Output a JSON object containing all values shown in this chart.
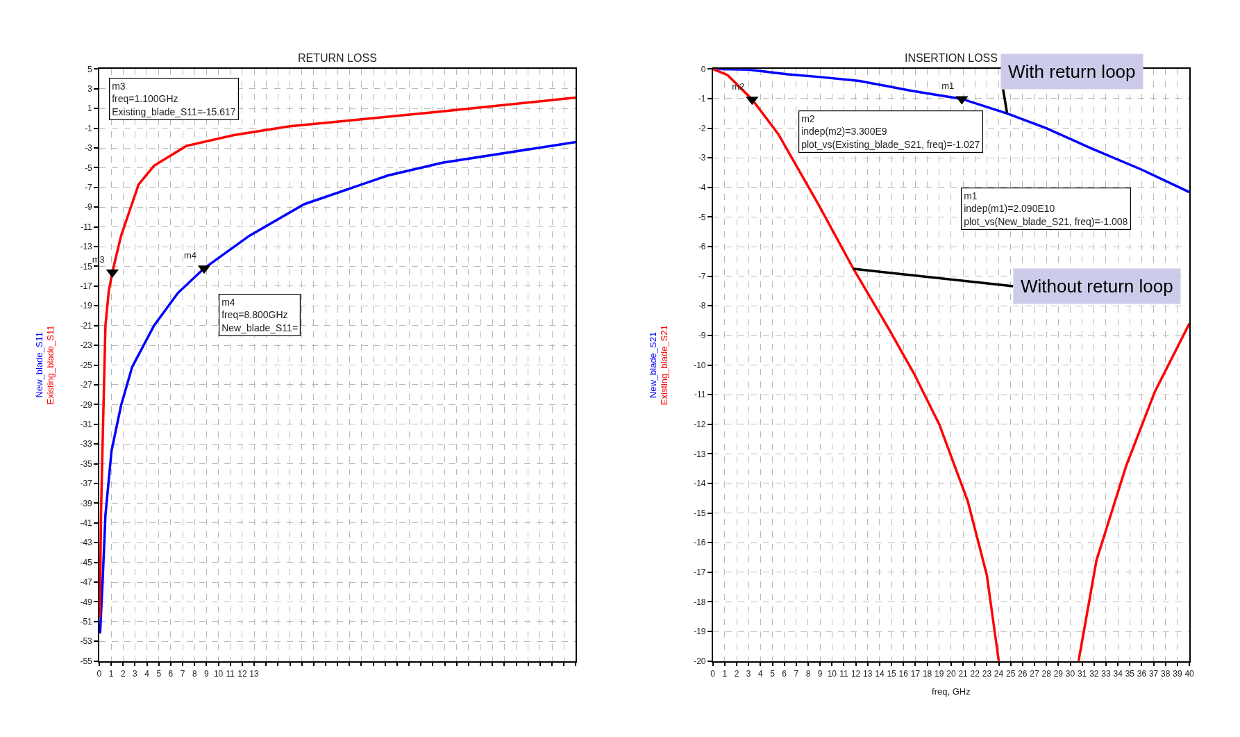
{
  "chart_data": [
    {
      "type": "line",
      "title": "RETURN LOSS",
      "grid": true,
      "xlim": [
        0,
        40
      ],
      "xticks": [
        0,
        1,
        2,
        3,
        4,
        5,
        6,
        7,
        8,
        9,
        10,
        11,
        12,
        13,
        {
          "value": 14,
          "label": null
        },
        {
          "value": 15,
          "label": null
        },
        {
          "value": 16,
          "label": null
        },
        {
          "value": 17,
          "label": null
        },
        {
          "value": 18,
          "label": null
        },
        {
          "value": 19,
          "label": null
        },
        {
          "value": 20,
          "label": null
        },
        {
          "value": 21,
          "label": null
        },
        {
          "value": 22,
          "label": null
        },
        {
          "value": 23,
          "label": null
        },
        {
          "value": 24,
          "label": null
        },
        {
          "value": 25,
          "label": null
        },
        {
          "value": 26,
          "label": null
        },
        {
          "value": 27,
          "label": null
        },
        {
          "value": 28,
          "label": null
        },
        {
          "value": 29,
          "label": null
        },
        {
          "value": 30,
          "label": null
        },
        {
          "value": 31,
          "label": null
        },
        {
          "value": 32,
          "label": null
        },
        {
          "value": 33,
          "label": null
        },
        {
          "value": 34,
          "label": null
        },
        {
          "value": 35,
          "label": null
        },
        {
          "value": 36,
          "label": null
        },
        {
          "value": 37,
          "label": null
        },
        {
          "value": 38,
          "label": null
        },
        {
          "value": 39,
          "label": null
        },
        {
          "value": 40,
          "label": null
        }
      ],
      "ylim": [
        -55,
        5
      ],
      "yticks": [
        5,
        3,
        1,
        -1,
        -3,
        -5,
        -7,
        -9,
        -11,
        -13,
        -15,
        -17,
        -19,
        -21,
        -23,
        -25,
        -27,
        -29,
        -31,
        -33,
        -35,
        -37,
        -39,
        -41,
        -43,
        -45,
        -47,
        -49,
        -51,
        -53,
        -55
      ],
      "series": [
        {
          "name": "New_blade_S11",
          "color": "#0000ff",
          "x": [
            0.07,
            0.28,
            0.52,
            1.03,
            1.83,
            2.76,
            4.6,
            6.6,
            8.8,
            12.6,
            17.2,
            24.2,
            28.8,
            40
          ],
          "values": [
            -52.2,
            -47,
            -40.2,
            -33.7,
            -29.1,
            -25.2,
            -21,
            -17.7,
            -15.2,
            -11.9,
            -8.7,
            -5.8,
            -4.5,
            -2.4
          ]
        },
        {
          "name": "Existing_blade_S11",
          "color": "#ff0000",
          "x": [
            0.05,
            0.15,
            0.28,
            0.52,
            0.8,
            1.1,
            1.83,
            3.3,
            4.6,
            7.3,
            11.3,
            16,
            19.5,
            28.7,
            40
          ],
          "values": [
            -50.6,
            -40,
            -33,
            -21,
            -17.5,
            -15.6,
            -11.9,
            -6.7,
            -4.8,
            -2.8,
            -1.7,
            -0.8,
            -0.4,
            0.7,
            2.1
          ]
        }
      ],
      "annotations": [
        {
          "text": "m3",
          "x": 1.1,
          "y": -15.6
        },
        {
          "text": "m4",
          "x": 8.8,
          "y": -15.2
        },
        "m3\nfreq=1.100GHz\nExisting_blade_S11=-15.617",
        "m4\nfreq=8.800GHz\nNew_blade_S11="
      ]
    },
    {
      "type": "line",
      "title": "INSERTION LOSS",
      "xlabel": "freq, GHz",
      "grid": true,
      "xlim": [
        0,
        40
      ],
      "xticks": [
        0,
        1,
        2,
        3,
        4,
        5,
        6,
        7,
        8,
        9,
        10,
        11,
        12,
        13,
        14,
        15,
        16,
        17,
        18,
        19,
        20,
        21,
        22,
        23,
        24,
        25,
        26,
        27,
        28,
        29,
        30,
        31,
        32,
        33,
        34,
        35,
        36,
        37,
        38,
        39,
        40
      ],
      "ylim": [
        -20,
        0
      ],
      "yticks": [
        0,
        -1,
        -2,
        -3,
        -4,
        -5,
        -6,
        -7,
        -8,
        -9,
        -10,
        -11,
        -12,
        -13,
        -14,
        -15,
        -16,
        -17,
        -18,
        -19,
        -20
      ],
      "series": [
        {
          "name": "New_blade_S21",
          "color": "#0000ff",
          "x": [
            0,
            3,
            6.3,
            9,
            12.3,
            16.6,
            20.9,
            24.7,
            28,
            31.7,
            36,
            40
          ],
          "values": [
            0,
            -0.02,
            -0.18,
            -0.27,
            -0.4,
            -0.73,
            -1.01,
            -1.5,
            -2.0,
            -2.67,
            -3.4,
            -4.16
          ]
        },
        {
          "name": "Existing_blade_S21",
          "color": "#ff0000",
          "x": [
            0,
            1.23,
            3.3,
            5.5,
            8.9,
            11.8,
            14.8,
            16.9,
            19.0,
            21.4,
            23.0,
            24.0,
            27,
            30.7,
            32.2,
            34.7,
            37.1,
            40
          ],
          "values": [
            0,
            -0.2,
            -1.03,
            -2.2,
            -4.6,
            -6.75,
            -8.8,
            -10.3,
            -12.0,
            -14.6,
            -17.1,
            -20,
            null,
            -20,
            -16.6,
            -13.4,
            -10.9,
            -8.6
          ]
        }
      ],
      "annotations": [
        {
          "text": "m2",
          "x": 3.3,
          "y": -1.03
        },
        {
          "text": "m1",
          "x": 20.9,
          "y": -1.01
        },
        "m2\nindep(m2)=3.300E9\nplot_vs(Existing_blade_S21, freq)=-1.027",
        "m1\nindep(m1)=2.090E10\nplot_vs(New_blade_S21, freq)=-1.008",
        {
          "text": "With return loop",
          "x": 24.7,
          "y": -1.5
        },
        {
          "text": "Without return loop",
          "x": 11.8,
          "y": -6.75
        }
      ]
    }
  ]
}
